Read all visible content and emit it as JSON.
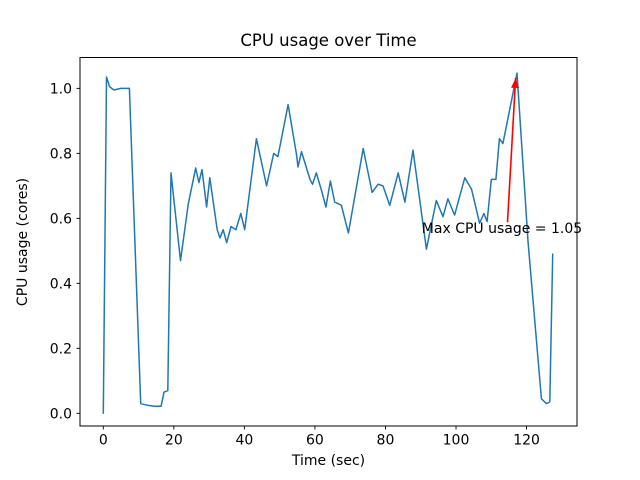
{
  "figure": {
    "title": "CPU usage over Time",
    "xlabel": "Time (sec)",
    "ylabel": "CPU usage (cores)"
  },
  "chart_data": {
    "type": "line",
    "title": "CPU usage over Time",
    "xlabel": "Time (sec)",
    "ylabel": "CPU usage (cores)",
    "legend": "none",
    "grid": false,
    "line_color": "#1f77b4",
    "axis_color": "#000000",
    "xlim": [
      -6.6,
      134.3
    ],
    "ylim": [
      -0.039,
      1.095
    ],
    "xticks": [
      0,
      20,
      40,
      60,
      80,
      100,
      120
    ],
    "ytick_labels": [
      "0.0",
      "0.2",
      "0.4",
      "0.6",
      "0.8",
      "1.0"
    ],
    "x": [
      0,
      0.9,
      1.8,
      3,
      5,
      7.4,
      10.6,
      12.5,
      14.5,
      16.4,
      17.2,
      18.3,
      19.2,
      21.9,
      24.1,
      26.2,
      27.1,
      28.0,
      29.3,
      30.2,
      32.3,
      33.1,
      34.0,
      35.0,
      36.2,
      37.6,
      39.0,
      40.1,
      43.4,
      46.3,
      48.3,
      49.5,
      52.4,
      54.8,
      55.2,
      56.2,
      58.6,
      59.3,
      60.4,
      61.9,
      63.1,
      64.4,
      65.6,
      66.6,
      67.5,
      69.5,
      73.7,
      76.2,
      77.9,
      79.3,
      81.2,
      83.6,
      85.5,
      87.8,
      91.6,
      94.4,
      96.3,
      97.7,
      99.6,
      102.5,
      104.4,
      106.7,
      107.9,
      108.8,
      110.0,
      111.3,
      112.3,
      113.3,
      117.3,
      120.4,
      124.2,
      125.6,
      126.6,
      127.4
    ],
    "y": [
      0.0,
      1.035,
      1.005,
      0.995,
      1.0,
      1.0,
      0.03,
      0.025,
      0.022,
      0.022,
      0.065,
      0.07,
      0.74,
      0.47,
      0.645,
      0.755,
      0.71,
      0.75,
      0.635,
      0.725,
      0.565,
      0.54,
      0.565,
      0.525,
      0.575,
      0.565,
      0.615,
      0.565,
      0.845,
      0.7,
      0.8,
      0.79,
      0.95,
      0.795,
      0.758,
      0.805,
      0.72,
      0.705,
      0.74,
      0.685,
      0.635,
      0.715,
      0.65,
      0.645,
      0.64,
      0.555,
      0.815,
      0.68,
      0.705,
      0.7,
      0.64,
      0.74,
      0.65,
      0.81,
      0.505,
      0.655,
      0.605,
      0.66,
      0.61,
      0.725,
      0.69,
      0.585,
      0.615,
      0.59,
      0.72,
      0.72,
      0.845,
      0.83,
      1.047,
      0.53,
      0.045,
      0.03,
      0.035,
      0.49
    ],
    "annotation": {
      "text": "Max CPU usage = 1.05",
      "color": "#ff0000",
      "max_value": "1.05",
      "text_xy": [
        90.3,
        0.585
      ],
      "arrow_tail_xy": [
        114.6,
        0.588
      ],
      "arrow_tip_xy": [
        116.9,
        1.032
      ]
    }
  }
}
